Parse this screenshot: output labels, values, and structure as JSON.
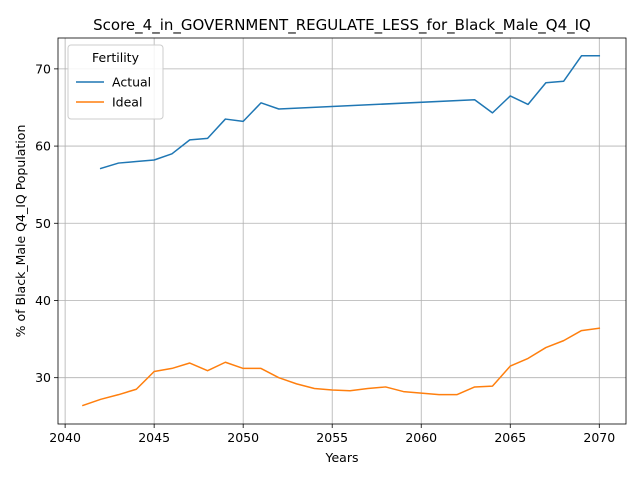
{
  "chart_data": {
    "type": "line",
    "title": "Score_4_in_GOVERNMENT_REGULATE_LESS_for_Black_Male_Q4_IQ",
    "xlabel": "Years",
    "ylabel": "% of Black_Male Q4_IQ Population",
    "xlim": [
      2039.6,
      2071.5
    ],
    "ylim": [
      24.0,
      74.0
    ],
    "xticks": [
      2040,
      2045,
      2050,
      2055,
      2060,
      2065,
      2070
    ],
    "yticks": [
      30,
      40,
      50,
      60,
      70
    ],
    "grid": true,
    "legend": {
      "title": "Fertility",
      "position": "top-left"
    },
    "series": [
      {
        "name": "Actual",
        "color": "#1f77b4",
        "x": [
          2042,
          2043,
          2044,
          2045,
          2046,
          2047,
          2048,
          2049,
          2050,
          2051,
          2052,
          2063,
          2064,
          2065,
          2066,
          2067,
          2068,
          2069,
          2070
        ],
        "y": [
          57.1,
          57.8,
          58.0,
          58.2,
          59.0,
          60.8,
          61.0,
          63.5,
          63.2,
          65.6,
          64.8,
          66.0,
          64.3,
          66.5,
          65.4,
          68.2,
          68.4,
          71.7,
          71.7
        ]
      },
      {
        "name": "Ideal",
        "color": "#ff7f0e",
        "x": [
          2041,
          2042,
          2043,
          2044,
          2045,
          2046,
          2047,
          2048,
          2049,
          2050,
          2051,
          2052,
          2053,
          2054,
          2055,
          2056,
          2057,
          2058,
          2059,
          2060,
          2061,
          2062,
          2063,
          2064,
          2065,
          2066,
          2067,
          2068,
          2069,
          2070
        ],
        "y": [
          26.4,
          27.2,
          27.8,
          28.5,
          30.8,
          31.2,
          31.9,
          30.9,
          32.0,
          31.2,
          31.2,
          30.0,
          29.2,
          28.6,
          28.4,
          28.3,
          28.6,
          28.8,
          28.2,
          28.0,
          27.8,
          27.8,
          28.8,
          28.9,
          31.5,
          32.5,
          33.9,
          34.8,
          36.1,
          36.4
        ]
      }
    ]
  }
}
